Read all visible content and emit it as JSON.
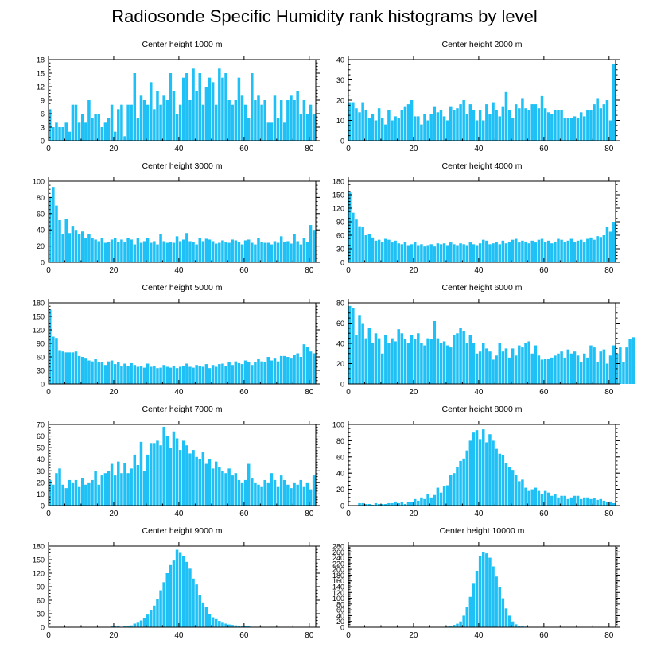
{
  "figure": {
    "title": "Radiosonde Specific Humidity rank histograms by level",
    "bar_color": "#1ec0f5",
    "bar_edge_color": "#ffffff",
    "axis_color": "#000000"
  },
  "chart_data": [
    {
      "type": "bar",
      "title": "Center height 1000 m",
      "xlim": [
        0,
        82
      ],
      "ylim": [
        0,
        18
      ],
      "xticks": [
        0,
        20,
        40,
        60,
        80
      ],
      "yticks": [
        0,
        3,
        6,
        9,
        12,
        15,
        18
      ],
      "x_start": 0,
      "values": [
        7,
        3,
        4,
        3,
        3,
        4,
        2,
        8,
        8,
        4,
        6,
        4,
        9,
        5,
        6,
        6,
        3,
        4,
        5,
        8,
        2,
        7,
        8,
        1,
        8,
        8,
        15,
        5,
        10,
        9,
        8,
        13,
        7,
        11,
        8,
        10,
        9,
        15,
        11,
        6,
        8,
        14,
        15,
        9,
        16,
        11,
        15,
        8,
        12,
        14,
        13,
        8,
        16,
        14,
        15,
        9,
        8,
        9,
        14,
        10,
        8,
        5,
        15,
        9,
        10,
        8,
        9,
        4,
        4,
        10,
        5,
        9,
        4,
        9,
        10,
        9,
        11,
        6,
        9,
        6,
        8,
        6
      ]
    },
    {
      "type": "bar",
      "title": "Center height 2000 m",
      "xlim": [
        0,
        82
      ],
      "ylim": [
        0,
        40
      ],
      "xticks": [
        0,
        20,
        40,
        60,
        80
      ],
      "yticks": [
        0,
        10,
        20,
        30,
        40
      ],
      "x_start": 0,
      "values": [
        19,
        19,
        16,
        14,
        19,
        15,
        11,
        13,
        10,
        16,
        11,
        8,
        15,
        10,
        12,
        11,
        15,
        17,
        18,
        20,
        12,
        12,
        8,
        13,
        10,
        13,
        17,
        14,
        15,
        12,
        10,
        17,
        15,
        16,
        18,
        20,
        13,
        18,
        15,
        10,
        15,
        10,
        18,
        13,
        19,
        15,
        12,
        17,
        24,
        15,
        11,
        18,
        16,
        21,
        16,
        15,
        18,
        18,
        16,
        22,
        16,
        14,
        13,
        15,
        15,
        15,
        11,
        11,
        11,
        12,
        11,
        14,
        12,
        15,
        15,
        18,
        21,
        16,
        18,
        20,
        10,
        38
      ]
    },
    {
      "type": "bar",
      "title": "Center height 3000 m",
      "xlim": [
        0,
        82
      ],
      "ylim": [
        0,
        100
      ],
      "xticks": [
        0,
        20,
        40,
        60,
        80
      ],
      "yticks": [
        0,
        20,
        40,
        60,
        80,
        100
      ],
      "x_start": 0,
      "values": [
        80,
        93,
        70,
        52,
        35,
        53,
        36,
        45,
        40,
        35,
        38,
        30,
        35,
        30,
        28,
        26,
        30,
        24,
        25,
        28,
        30,
        25,
        28,
        25,
        30,
        28,
        22,
        30,
        24,
        26,
        30,
        24,
        26,
        22,
        35,
        26,
        24,
        25,
        24,
        32,
        26,
        28,
        36,
        26,
        25,
        22,
        30,
        26,
        29,
        28,
        26,
        23,
        24,
        27,
        25,
        24,
        28,
        27,
        25,
        22,
        27,
        28,
        24,
        22,
        30,
        25,
        24,
        24,
        22,
        26,
        24,
        32,
        25,
        26,
        23,
        35,
        26,
        22,
        30,
        25,
        46,
        40
      ]
    },
    {
      "type": "bar",
      "title": "Center height 4000 m",
      "xlim": [
        0,
        82
      ],
      "ylim": [
        0,
        180
      ],
      "xticks": [
        0,
        20,
        40,
        60,
        80
      ],
      "yticks": [
        0,
        30,
        60,
        90,
        120,
        150,
        180
      ],
      "x_start": 0,
      "values": [
        155,
        110,
        95,
        80,
        78,
        60,
        62,
        55,
        48,
        50,
        45,
        52,
        50,
        44,
        48,
        42,
        40,
        45,
        38,
        40,
        45,
        38,
        40,
        35,
        38,
        40,
        35,
        42,
        40,
        42,
        38,
        44,
        40,
        38,
        42,
        40,
        38,
        44,
        40,
        38,
        42,
        50,
        48,
        40,
        42,
        45,
        40,
        48,
        42,
        45,
        50,
        52,
        44,
        48,
        46,
        42,
        48,
        44,
        50,
        52,
        45,
        48,
        42,
        46,
        52,
        50,
        45,
        48,
        52,
        45,
        48,
        50,
        44,
        52,
        55,
        50,
        58,
        56,
        60,
        78,
        68,
        90
      ]
    },
    {
      "type": "bar",
      "title": "Center height 5000 m",
      "xlim": [
        0,
        82
      ],
      "ylim": [
        0,
        180
      ],
      "xticks": [
        0,
        20,
        40,
        60,
        80
      ],
      "yticks": [
        0,
        30,
        60,
        90,
        120,
        150,
        180
      ],
      "x_start": 0,
      "values": [
        165,
        105,
        102,
        75,
        72,
        70,
        70,
        70,
        72,
        62,
        60,
        58,
        52,
        50,
        55,
        48,
        48,
        42,
        50,
        52,
        44,
        48,
        40,
        45,
        40,
        46,
        42,
        38,
        40,
        36,
        45,
        38,
        40,
        35,
        36,
        42,
        38,
        36,
        40,
        35,
        38,
        40,
        45,
        38,
        36,
        42,
        40,
        38,
        44,
        35,
        42,
        38,
        44,
        45,
        40,
        48,
        42,
        50,
        46,
        44,
        52,
        48,
        42,
        48,
        55,
        50,
        48,
        60,
        52,
        58,
        50,
        62,
        62,
        60,
        58,
        64,
        68,
        60,
        88,
        82,
        72,
        68
      ]
    },
    {
      "type": "bar",
      "title": "Center height 6000 m",
      "xlim": [
        0,
        82
      ],
      "ylim": [
        0,
        80
      ],
      "xticks": [
        0,
        20,
        40,
        60,
        80
      ],
      "yticks": [
        0,
        20,
        40,
        60,
        80
      ],
      "x_start": 0,
      "values": [
        77,
        75,
        48,
        68,
        60,
        45,
        55,
        40,
        50,
        45,
        30,
        48,
        40,
        45,
        42,
        54,
        50,
        44,
        40,
        48,
        44,
        50,
        40,
        38,
        45,
        44,
        62,
        45,
        40,
        42,
        38,
        36,
        48,
        50,
        55,
        52,
        40,
        48,
        40,
        30,
        32,
        40,
        35,
        32,
        24,
        28,
        40,
        32,
        35,
        26,
        35,
        28,
        38,
        36,
        40,
        42,
        30,
        38,
        28,
        24,
        25,
        25,
        26,
        28,
        30,
        32,
        26,
        34,
        30,
        32,
        28,
        22,
        30,
        26,
        38,
        36,
        22,
        32,
        34,
        20,
        28,
        38,
        30,
        36,
        22,
        36,
        44,
        46
      ]
    },
    {
      "type": "bar",
      "title": "Center height 7000 m",
      "xlim": [
        0,
        82
      ],
      "ylim": [
        0,
        70
      ],
      "xticks": [
        0,
        20,
        40,
        60,
        80
      ],
      "yticks": [
        0,
        10,
        20,
        30,
        40,
        50,
        60,
        70
      ],
      "x_start": 0,
      "values": [
        22,
        18,
        28,
        32,
        18,
        15,
        22,
        20,
        22,
        16,
        24,
        18,
        20,
        22,
        30,
        18,
        26,
        28,
        30,
        36,
        26,
        38,
        28,
        37,
        28,
        32,
        44,
        35,
        55,
        30,
        44,
        54,
        54,
        56,
        52,
        68,
        60,
        50,
        64,
        58,
        48,
        56,
        52,
        45,
        48,
        42,
        40,
        46,
        36,
        40,
        32,
        38,
        33,
        30,
        28,
        32,
        26,
        28,
        22,
        20,
        22,
        36,
        24,
        20,
        18,
        16,
        22,
        20,
        28,
        22,
        16,
        26,
        22,
        18,
        15,
        20,
        18,
        22,
        16,
        20,
        14,
        26
      ]
    },
    {
      "type": "bar",
      "title": "Center height 8000 m",
      "xlim": [
        0,
        82
      ],
      "ylim": [
        0,
        100
      ],
      "xticks": [
        0,
        20,
        40,
        60,
        80
      ],
      "yticks": [
        0,
        20,
        40,
        60,
        80,
        100
      ],
      "x_start": 0,
      "values": [
        0,
        0,
        0,
        3,
        3,
        2,
        2,
        1,
        3,
        2,
        2,
        2,
        3,
        3,
        5,
        3,
        4,
        2,
        4,
        4,
        8,
        6,
        10,
        8,
        14,
        10,
        13,
        22,
        16,
        24,
        25,
        38,
        40,
        48,
        55,
        58,
        68,
        80,
        90,
        93,
        82,
        94,
        78,
        88,
        80,
        70,
        64,
        62,
        52,
        48,
        44,
        38,
        30,
        32,
        22,
        18,
        20,
        22,
        18,
        14,
        18,
        16,
        12,
        14,
        10,
        12,
        12,
        8,
        10,
        12,
        12,
        8,
        10,
        10,
        8,
        9,
        7,
        8,
        6,
        4,
        5,
        3
      ]
    },
    {
      "type": "bar",
      "title": "Center height 9000 m",
      "xlim": [
        0,
        82
      ],
      "ylim": [
        0,
        180
      ],
      "xticks": [
        0,
        20,
        40,
        60,
        80
      ],
      "yticks": [
        0,
        30,
        60,
        90,
        120,
        150,
        180
      ],
      "x_start": 0,
      "values": [
        0,
        0,
        0,
        0,
        0,
        0,
        0,
        0,
        0,
        0,
        0,
        0,
        0,
        0,
        0,
        0,
        0,
        0,
        0,
        2,
        2,
        2,
        0,
        3,
        2,
        4,
        8,
        10,
        15,
        20,
        28,
        38,
        48,
        62,
        82,
        100,
        120,
        138,
        148,
        172,
        165,
        158,
        145,
        130,
        108,
        95,
        72,
        55,
        45,
        30,
        22,
        18,
        14,
        10,
        8,
        6,
        5,
        4,
        3,
        3,
        2,
        2,
        1,
        1,
        1,
        1,
        0,
        0,
        1,
        1,
        0,
        0,
        0,
        0,
        0,
        0,
        0,
        0,
        0,
        0,
        0,
        0
      ]
    },
    {
      "type": "bar",
      "title": "Center height 10000 m",
      "xlim": [
        0,
        82
      ],
      "ylim": [
        0,
        280
      ],
      "xticks": [
        0,
        20,
        40,
        60,
        80
      ],
      "yticks": [
        0,
        20,
        40,
        60,
        80,
        100,
        120,
        140,
        160,
        180,
        200,
        220,
        240,
        260,
        280
      ],
      "x_start": 0,
      "values": [
        0,
        0,
        0,
        0,
        0,
        0,
        0,
        0,
        0,
        0,
        0,
        0,
        0,
        0,
        0,
        0,
        0,
        0,
        0,
        0,
        0,
        0,
        0,
        0,
        0,
        0,
        0,
        0,
        0,
        0,
        2,
        4,
        8,
        12,
        20,
        40,
        70,
        105,
        150,
        195,
        245,
        260,
        255,
        240,
        210,
        175,
        140,
        100,
        65,
        40,
        20,
        10,
        5,
        3,
        2,
        1,
        1,
        0,
        0,
        0,
        0,
        0,
        0,
        0,
        0,
        0,
        0,
        0,
        0,
        0,
        0,
        0,
        0,
        0,
        0,
        0,
        0,
        0,
        0,
        0,
        0,
        0
      ]
    }
  ]
}
